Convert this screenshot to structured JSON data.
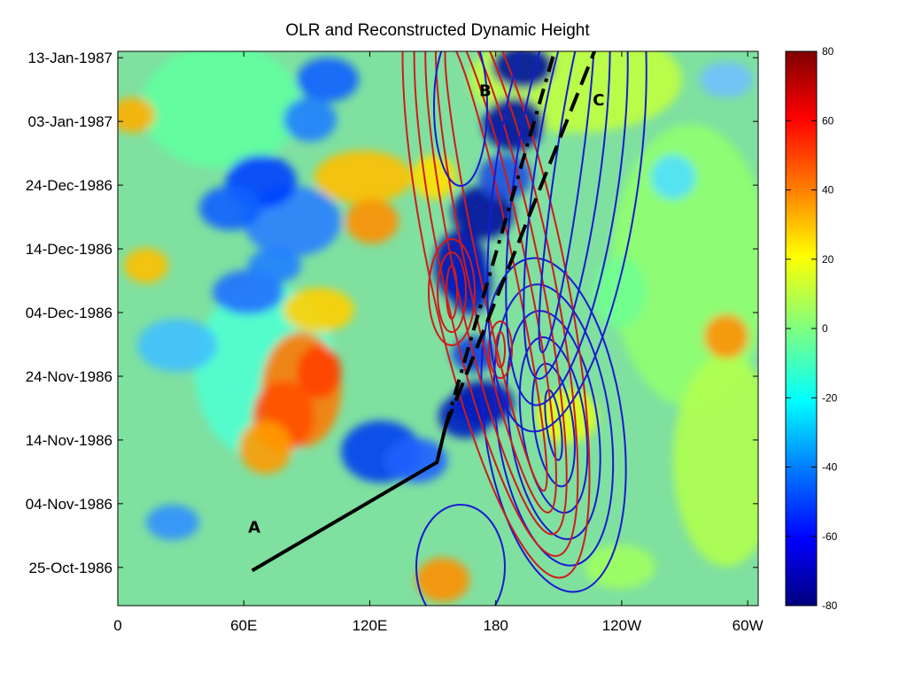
{
  "chart_data": {
    "type": "heatmap",
    "title": "OLR and Reconstructed Dynamic Height",
    "xlabel": "",
    "ylabel": "",
    "x_ticks": [
      "0",
      "60E",
      "120E",
      "180",
      "120W",
      "60W"
    ],
    "x_tick_values": [
      0,
      60,
      120,
      180,
      240,
      300
    ],
    "xlim": [
      0,
      305
    ],
    "y_ticks": [
      "25-Oct-1986",
      "04-Nov-1986",
      "14-Nov-1986",
      "24-Nov-1986",
      "04-Dec-1986",
      "14-Dec-1986",
      "24-Dec-1986",
      "03-Jan-1987",
      "13-Jan-1987"
    ],
    "y_tick_values": [
      0,
      10,
      20,
      30,
      40,
      50,
      60,
      70,
      80
    ],
    "ylim_days_from_first_tick": [
      -6,
      81
    ],
    "colorbar": {
      "ticks": [
        "80",
        "60",
        "40",
        "20",
        "0",
        "-20",
        "-40",
        "-60",
        "-80"
      ],
      "tick_values": [
        80,
        60,
        40,
        20,
        0,
        -20,
        -40,
        -60,
        -80
      ],
      "range": [
        -80,
        80
      ],
      "colormap": "jet"
    },
    "grid": false,
    "annotations": [
      {
        "label": "A",
        "x": 65,
        "y": 5.5
      },
      {
        "label": "B",
        "x": 175,
        "y": 74
      },
      {
        "label": "C",
        "x": 229,
        "y": 72.5
      }
    ],
    "tracks": [
      {
        "label": "A",
        "style": "solid",
        "points": [
          [
            64,
            -0.5
          ],
          [
            152,
            16.5
          ],
          [
            156,
            22
          ]
        ]
      },
      {
        "label": "B",
        "style": "dashdot",
        "points": [
          [
            156,
            22
          ],
          [
            208,
            81
          ]
        ]
      },
      {
        "label": "C",
        "style": "dashed",
        "points": [
          [
            156,
            22
          ],
          [
            227,
            81
          ]
        ]
      }
    ],
    "contours": {
      "positive_color": "#d11a1a",
      "negative_color": "#1a1ad1"
    },
    "colors": {
      "field_background": "#7fe0a0",
      "track_line": "#000000"
    }
  }
}
